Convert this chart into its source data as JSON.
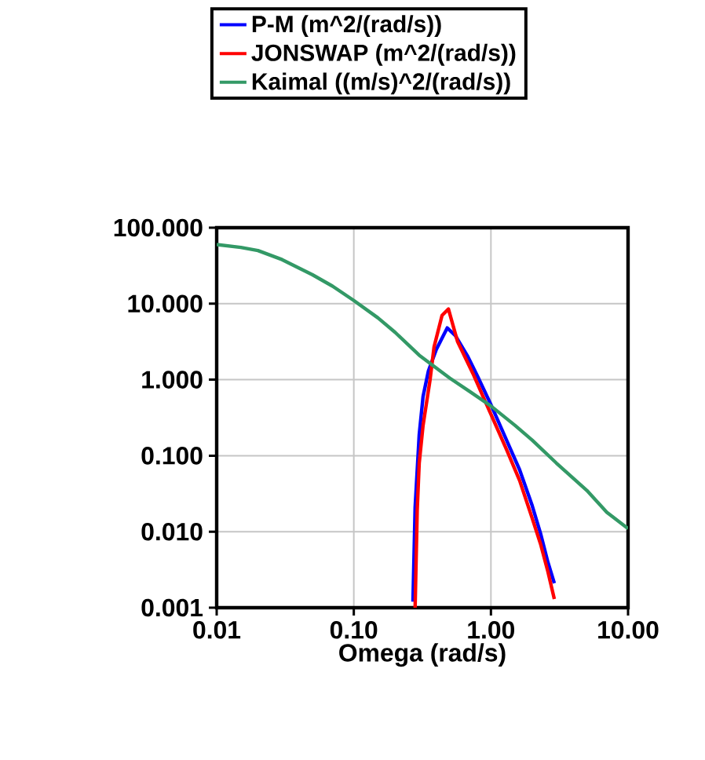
{
  "chart_data": {
    "type": "line",
    "xlabel": "Omega (rad/s)",
    "log": "xy",
    "grid": true,
    "legend": "top",
    "marker": "none",
    "line_style": "solid",
    "xlim": [
      0.01,
      10
    ],
    "ylim": [
      0.001,
      100
    ],
    "xticks": [
      {
        "value": 0.01,
        "label": "0.01"
      },
      {
        "value": 0.1,
        "label": "0.10"
      },
      {
        "value": 1,
        "label": "1.00"
      },
      {
        "value": 10,
        "label": "10.00"
      }
    ],
    "yticks": [
      {
        "value": 0.001,
        "label": "0.001"
      },
      {
        "value": 0.01,
        "label": "0.010"
      },
      {
        "value": 0.1,
        "label": "0.100"
      },
      {
        "value": 1,
        "label": "1.000"
      },
      {
        "value": 10,
        "label": "10.000"
      },
      {
        "value": 100,
        "label": "100.000"
      }
    ],
    "series": [
      {
        "name": "P-M (m^2/(rad/s))",
        "color": "#0000ff",
        "x": [
          0.27,
          0.28,
          0.3,
          0.32,
          0.35,
          0.4,
          0.48,
          0.55,
          0.68,
          0.8,
          1.0,
          1.3,
          1.62,
          2.0,
          2.3,
          2.6,
          2.9
        ],
        "values": [
          0.0012,
          0.021,
          0.19,
          0.6,
          1.3,
          2.5,
          4.8,
          3.8,
          2.0,
          1.1,
          0.47,
          0.16,
          0.065,
          0.022,
          0.0095,
          0.004,
          0.0021
        ]
      },
      {
        "name": "JONSWAP (m^2/(rad/s))",
        "color": "#ff0000",
        "x": [
          0.28,
          0.29,
          0.3,
          0.32,
          0.36,
          0.385,
          0.44,
          0.49,
          0.57,
          0.74,
          1.0,
          1.3,
          1.62,
          2.0,
          2.3,
          2.6,
          2.9
        ],
        "values": [
          0.001,
          0.019,
          0.08,
          0.25,
          1.0,
          2.7,
          7.0,
          8.5,
          3.2,
          1.2,
          0.35,
          0.12,
          0.047,
          0.015,
          0.0069,
          0.003,
          0.0013
        ]
      },
      {
        "name": "Kaimal ((m/s)^2/(rad/s))",
        "color": "#339966",
        "x": [
          0.01,
          0.015,
          0.02,
          0.03,
          0.05,
          0.07,
          0.1,
          0.15,
          0.2,
          0.3,
          0.5,
          0.7,
          1,
          1.5,
          2,
          3,
          5,
          7,
          10
        ],
        "values": [
          60,
          55,
          50,
          38,
          24,
          17,
          11,
          6.5,
          4.2,
          2.1,
          1.05,
          0.7,
          0.45,
          0.25,
          0.16,
          0.08,
          0.035,
          0.018,
          0.011
        ]
      }
    ]
  }
}
